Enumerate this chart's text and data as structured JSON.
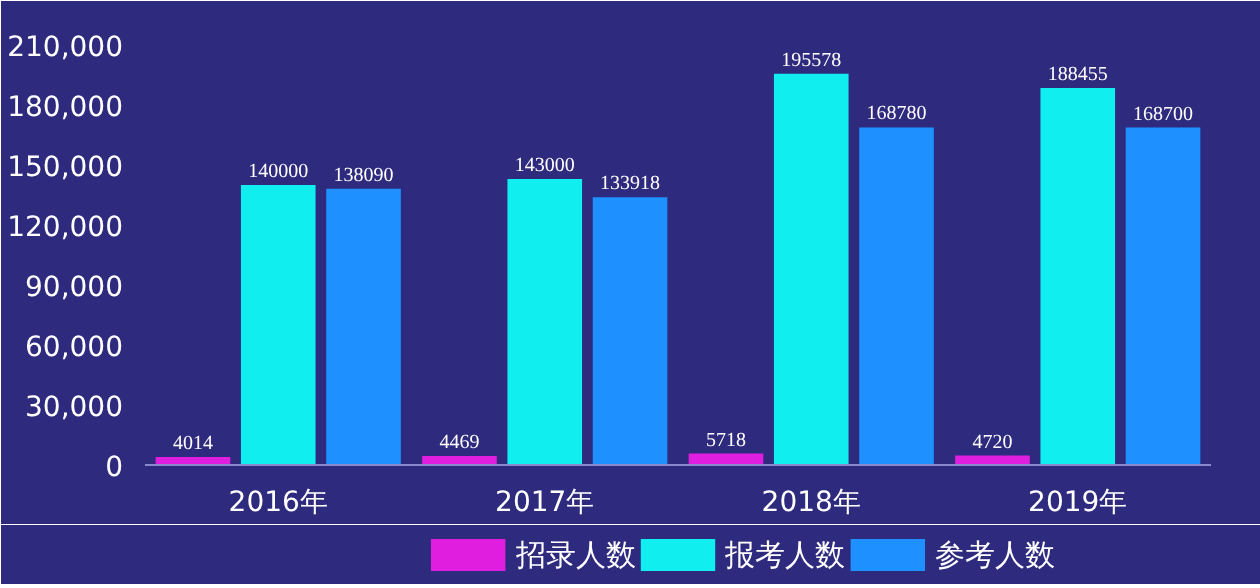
{
  "chart_data": {
    "type": "bar",
    "categories": [
      "2016年",
      "2017年",
      "2018年",
      "2019年"
    ],
    "series": [
      {
        "name": "招录人数",
        "color": "#e01ee0",
        "values": [
          4014,
          4469,
          5718,
          4720
        ]
      },
      {
        "name": "报考人数",
        "color": "#10eef0",
        "values": [
          140000,
          143000,
          195578,
          188455
        ]
      },
      {
        "name": "参考人数",
        "color": "#1e90ff",
        "values": [
          138090,
          133918,
          168780,
          168700
        ]
      }
    ],
    "ylim": [
      0,
      210000
    ],
    "yticks": [
      0,
      {
        "value": 30000,
        "label": "30,000"
      },
      {
        "value": 60000,
        "label": "60,000"
      },
      {
        "value": 90000,
        "label": "90,000"
      },
      {
        "value": 120000,
        "label": "120,000"
      },
      {
        "value": 150000,
        "label": "150,000"
      },
      {
        "value": 180000,
        "label": "180,000"
      },
      {
        "value": 210000,
        "label": "210,000"
      }
    ],
    "grid": false,
    "legend": "bottom",
    "data_labels": true
  }
}
